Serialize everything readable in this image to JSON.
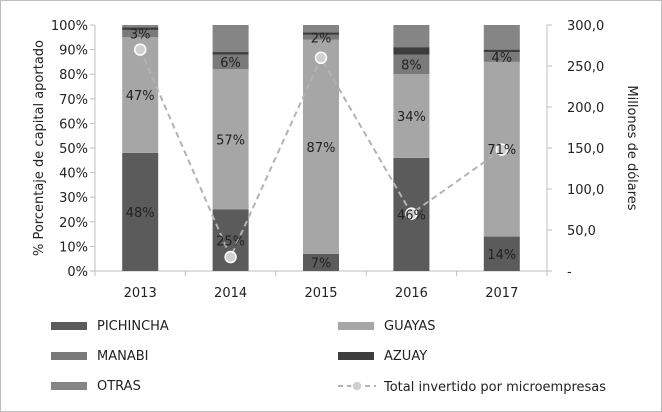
{
  "chart_data": {
    "type": "bar",
    "subtype": "stacked-percent-with-line",
    "categories": [
      "2013",
      "2014",
      "2015",
      "2016",
      "2017"
    ],
    "series": [
      {
        "name": "PICHINCHA",
        "values": [
          48,
          25,
          7,
          46,
          14
        ],
        "color": "#5b5b5b"
      },
      {
        "name": "GUAYAS",
        "values": [
          47,
          57,
          87,
          34,
          71
        ],
        "color": "#a6a6a6"
      },
      {
        "name": "MANABI",
        "values": [
          3,
          6,
          2,
          8,
          4
        ],
        "color": "#7a7a7a"
      },
      {
        "name": "AZUAY",
        "values": [
          1,
          1,
          1,
          3,
          1
        ],
        "color": "#3d3d3d"
      },
      {
        "name": "OTRAS",
        "values": [
          1,
          11,
          3,
          9,
          10
        ],
        "color": "#858585"
      }
    ],
    "data_labels": [
      {
        "series": "PICHINCHA",
        "labels": [
          "48%",
          "25%",
          "7%",
          "46%",
          "14%"
        ]
      },
      {
        "series": "GUAYAS",
        "labels": [
          "47%",
          "57%",
          "87%",
          "34%",
          "71%"
        ]
      },
      {
        "series": "MANABI",
        "labels": [
          "3%",
          "6%",
          "2%",
          "8%",
          "4%"
        ]
      }
    ],
    "line_series": {
      "name": "Total invertido por microempresas",
      "values": [
        270,
        17,
        260,
        70,
        148
      ],
      "axis": "right",
      "color": "#b3b3b3",
      "style": "dashed"
    },
    "y_left": {
      "label": "% Porcentaje de capital aportado",
      "ticks": [
        "0%",
        "10%",
        "20%",
        "30%",
        "40%",
        "50%",
        "60%",
        "70%",
        "80%",
        "90%",
        "100%"
      ],
      "range": [
        0,
        100
      ]
    },
    "y_right": {
      "label": "Millones de dólares",
      "ticks": [
        "-",
        "50,0",
        "100,0",
        "150,0",
        "200,0",
        "250,0",
        "300,0"
      ],
      "range": [
        0,
        300
      ]
    },
    "legend_position": "bottom",
    "legend": [
      "PICHINCHA",
      "GUAYAS",
      "MANABI",
      "AZUAY",
      "OTRAS",
      "Total invertido por microempresas"
    ]
  }
}
